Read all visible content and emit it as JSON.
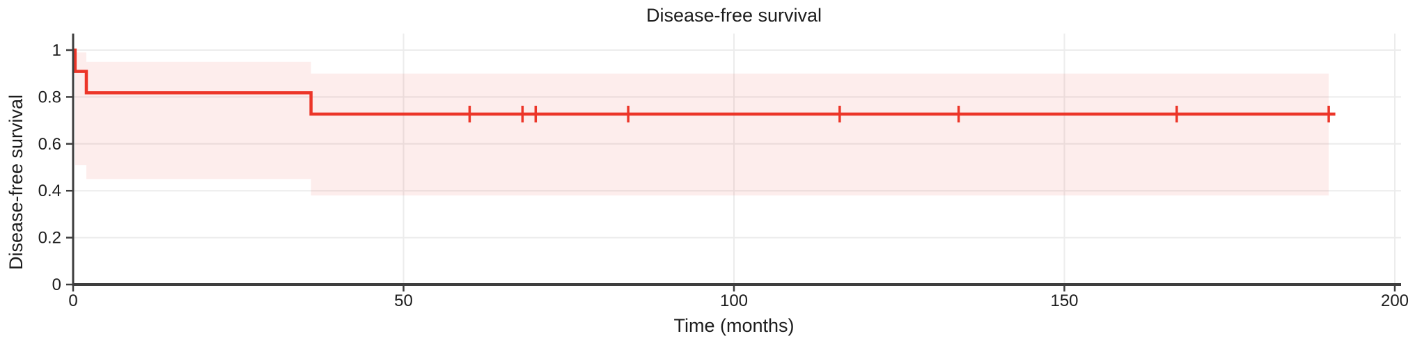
{
  "chart_data": {
    "type": "line",
    "variant": "kaplan_meier_step",
    "title": "Disease-free survival",
    "xlabel": "Time (months)",
    "ylabel": "Disease-free survival",
    "xlim": [
      0,
      200
    ],
    "ylim": [
      0,
      1.07
    ],
    "xticks": {
      "values": [
        0,
        50,
        100,
        150,
        200
      ],
      "labels": [
        "0",
        "50",
        "100",
        "150",
        "200"
      ]
    },
    "yticks": {
      "values": [
        0,
        0.2,
        0.4,
        0.6,
        0.8,
        1
      ],
      "labels": [
        "0",
        "0.2",
        "0.4",
        "0.6",
        "0.8",
        "1"
      ]
    },
    "grid": {
      "show": true,
      "color": "#ececec"
    },
    "legend": {
      "show": false
    },
    "axis_color": "#3e3e3e",
    "text_color": "#1c1c1c",
    "background": "#ffffff",
    "series": [
      {
        "name": "Disease-free survival",
        "color": "#ec3528",
        "line_width": 4.5,
        "steps": [
          [
            0,
            1.0
          ],
          [
            0.3,
            0.909
          ],
          [
            2,
            0.818
          ],
          [
            36,
            0.727
          ],
          [
            191,
            0.727
          ]
        ],
        "censor_marks": {
          "times": [
            60,
            68,
            70,
            84,
            116,
            134,
            167,
            190
          ],
          "survival": 0.727
        },
        "confidence_band": {
          "fill": "#ec3528",
          "opacity": 0.09,
          "segments": [
            {
              "from": 0.3,
              "to": 2,
              "lower": 0.51,
              "upper": 0.99
            },
            {
              "from": 2,
              "to": 36,
              "lower": 0.45,
              "upper": 0.95
            },
            {
              "from": 36,
              "to": 190,
              "lower": 0.38,
              "upper": 0.9
            }
          ]
        }
      }
    ]
  }
}
